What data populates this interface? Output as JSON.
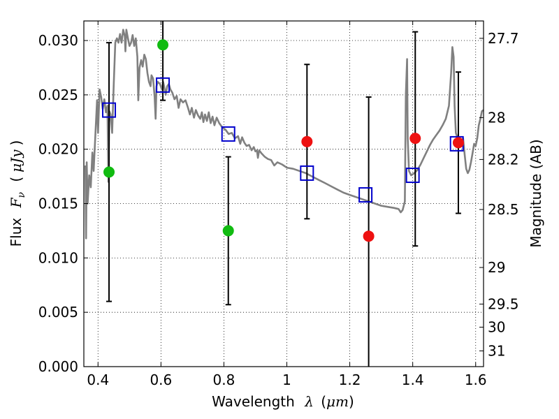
{
  "chart_data": {
    "type": "scatter",
    "xlabel_text": "Wavelength",
    "xlabel_symbol": "λ",
    "xlabel_unit": "μm",
    "ylabel_text": "Flux",
    "ylabel_symbol": "F",
    "ylabel_sub": "ν",
    "ylabel_unit": "μJy",
    "y2label": "Magnitude (AB)",
    "xlim": [
      0.355,
      1.625
    ],
    "ylim": [
      0.0,
      0.0318
    ],
    "grid": true,
    "x_ticks": [
      {
        "v": 0.4,
        "label": "0.4"
      },
      {
        "v": 0.6,
        "label": "0.6"
      },
      {
        "v": 0.8,
        "label": "0.8"
      },
      {
        "v": 1.0,
        "label": "1"
      },
      {
        "v": 1.2,
        "label": "1.2"
      },
      {
        "v": 1.4,
        "label": "1.4"
      },
      {
        "v": 1.6,
        "label": "1.6"
      }
    ],
    "y_ticks": [
      {
        "v": 0.0,
        "label": "0.000"
      },
      {
        "v": 0.005,
        "label": "0.005"
      },
      {
        "v": 0.01,
        "label": "0.010"
      },
      {
        "v": 0.015,
        "label": "0.015"
      },
      {
        "v": 0.02,
        "label": "0.020"
      },
      {
        "v": 0.025,
        "label": "0.025"
      },
      {
        "v": 0.03,
        "label": "0.030"
      }
    ],
    "y2_ticks": [
      {
        "mag": 27.7,
        "label": "27.7"
      },
      {
        "mag": 28.0,
        "label": "28"
      },
      {
        "mag": 28.2,
        "label": "28.2"
      },
      {
        "mag": 28.5,
        "label": "28.5"
      },
      {
        "mag": 29.0,
        "label": "29"
      },
      {
        "mag": 29.5,
        "label": "29.5"
      },
      {
        "mag": 30.0,
        "label": "30"
      },
      {
        "mag": 31.0,
        "label": "31"
      }
    ],
    "colors": {
      "model": "#808080",
      "model_phot": "#0000cc",
      "obs_green": "#11bb11",
      "obs_red": "#ee1111",
      "errorbar": "#000000"
    },
    "model_spectrum": [
      [
        0.36,
        0.0185
      ],
      [
        0.362,
        0.0118
      ],
      [
        0.364,
        0.0188
      ],
      [
        0.367,
        0.015
      ],
      [
        0.372,
        0.0176
      ],
      [
        0.377,
        0.0165
      ],
      [
        0.382,
        0.0197
      ],
      [
        0.386,
        0.018
      ],
      [
        0.392,
        0.0216
      ],
      [
        0.397,
        0.0245
      ],
      [
        0.4,
        0.0215
      ],
      [
        0.405,
        0.0255
      ],
      [
        0.41,
        0.0248
      ],
      [
        0.415,
        0.0237
      ],
      [
        0.42,
        0.0246
      ],
      [
        0.425,
        0.0234
      ],
      [
        0.43,
        0.024
      ],
      [
        0.433,
        0.017
      ],
      [
        0.436,
        0.0235
      ],
      [
        0.44,
        0.0232
      ],
      [
        0.445,
        0.0215
      ],
      [
        0.45,
        0.026
      ],
      [
        0.455,
        0.0298
      ],
      [
        0.46,
        0.0302
      ],
      [
        0.465,
        0.0298
      ],
      [
        0.47,
        0.0306
      ],
      [
        0.475,
        0.0298
      ],
      [
        0.48,
        0.031
      ],
      [
        0.485,
        0.0304
      ],
      [
        0.487,
        0.029
      ],
      [
        0.49,
        0.031
      ],
      [
        0.495,
        0.0302
      ],
      [
        0.5,
        0.0295
      ],
      [
        0.505,
        0.0298
      ],
      [
        0.51,
        0.0305
      ],
      [
        0.515,
        0.0295
      ],
      [
        0.52,
        0.0302
      ],
      [
        0.525,
        0.0285
      ],
      [
        0.528,
        0.0245
      ],
      [
        0.532,
        0.0275
      ],
      [
        0.537,
        0.0282
      ],
      [
        0.542,
        0.0276
      ],
      [
        0.547,
        0.0287
      ],
      [
        0.552,
        0.0283
      ],
      [
        0.557,
        0.027
      ],
      [
        0.562,
        0.0262
      ],
      [
        0.567,
        0.0258
      ],
      [
        0.57,
        0.0268
      ],
      [
        0.575,
        0.0265
      ],
      [
        0.58,
        0.0248
      ],
      [
        0.583,
        0.0228
      ],
      [
        0.586,
        0.0258
      ],
      [
        0.59,
        0.0262
      ],
      [
        0.597,
        0.026
      ],
      [
        0.603,
        0.0255
      ],
      [
        0.607,
        0.0262
      ],
      [
        0.61,
        0.0258
      ],
      [
        0.615,
        0.025
      ],
      [
        0.62,
        0.0258
      ],
      [
        0.625,
        0.026
      ],
      [
        0.63,
        0.0255
      ],
      [
        0.636,
        0.0252
      ],
      [
        0.643,
        0.0246
      ],
      [
        0.65,
        0.0249
      ],
      [
        0.656,
        0.0238
      ],
      [
        0.662,
        0.0246
      ],
      [
        0.67,
        0.0243
      ],
      [
        0.678,
        0.0245
      ],
      [
        0.686,
        0.0238
      ],
      [
        0.692,
        0.0232
      ],
      [
        0.698,
        0.0238
      ],
      [
        0.705,
        0.0229
      ],
      [
        0.711,
        0.0236
      ],
      [
        0.718,
        0.0231
      ],
      [
        0.725,
        0.0228
      ],
      [
        0.73,
        0.0234
      ],
      [
        0.735,
        0.0225
      ],
      [
        0.74,
        0.0232
      ],
      [
        0.746,
        0.0226
      ],
      [
        0.752,
        0.0234
      ],
      [
        0.758,
        0.0224
      ],
      [
        0.764,
        0.023
      ],
      [
        0.77,
        0.0222
      ],
      [
        0.777,
        0.0229
      ],
      [
        0.785,
        0.0224
      ],
      [
        0.795,
        0.022
      ],
      [
        0.805,
        0.0218
      ],
      [
        0.815,
        0.0214
      ],
      [
        0.825,
        0.0215
      ],
      [
        0.835,
        0.021
      ],
      [
        0.845,
        0.0212
      ],
      [
        0.852,
        0.0205
      ],
      [
        0.858,
        0.0211
      ],
      [
        0.865,
        0.0206
      ],
      [
        0.872,
        0.0203
      ],
      [
        0.88,
        0.0204
      ],
      [
        0.888,
        0.0199
      ],
      [
        0.895,
        0.0202
      ],
      [
        0.9,
        0.0198
      ],
      [
        0.905,
        0.0199
      ],
      [
        0.908,
        0.0192
      ],
      [
        0.912,
        0.0199
      ],
      [
        0.92,
        0.0196
      ],
      [
        0.93,
        0.0193
      ],
      [
        0.94,
        0.0191
      ],
      [
        0.95,
        0.019
      ],
      [
        0.96,
        0.0185
      ],
      [
        0.97,
        0.0188
      ],
      [
        0.985,
        0.0186
      ],
      [
        1.0,
        0.0183
      ],
      [
        1.02,
        0.0182
      ],
      [
        1.04,
        0.018
      ],
      [
        1.06,
        0.0178
      ],
      [
        1.08,
        0.0175
      ],
      [
        1.1,
        0.0172
      ],
      [
        1.12,
        0.0169
      ],
      [
        1.14,
        0.0166
      ],
      [
        1.16,
        0.0163
      ],
      [
        1.18,
        0.016
      ],
      [
        1.2,
        0.0158
      ],
      [
        1.22,
        0.0156
      ],
      [
        1.24,
        0.0154
      ],
      [
        1.26,
        0.0152
      ],
      [
        1.28,
        0.015
      ],
      [
        1.3,
        0.0148
      ],
      [
        1.32,
        0.0147
      ],
      [
        1.34,
        0.0146
      ],
      [
        1.355,
        0.0145
      ],
      [
        1.362,
        0.0142
      ],
      [
        1.368,
        0.0144
      ],
      [
        1.375,
        0.0152
      ],
      [
        1.378,
        0.025
      ],
      [
        1.382,
        0.0283
      ],
      [
        1.384,
        0.021
      ],
      [
        1.388,
        0.018
      ],
      [
        1.395,
        0.0176
      ],
      [
        1.405,
        0.0178
      ],
      [
        1.415,
        0.0181
      ],
      [
        1.425,
        0.0186
      ],
      [
        1.435,
        0.0192
      ],
      [
        1.445,
        0.0198
      ],
      [
        1.455,
        0.0204
      ],
      [
        1.465,
        0.0209
      ],
      [
        1.475,
        0.0213
      ],
      [
        1.485,
        0.0217
      ],
      [
        1.495,
        0.0222
      ],
      [
        1.505,
        0.0228
      ],
      [
        1.515,
        0.024
      ],
      [
        1.522,
        0.027
      ],
      [
        1.526,
        0.0294
      ],
      [
        1.53,
        0.0285
      ],
      [
        1.533,
        0.024
      ],
      [
        1.537,
        0.0215
      ],
      [
        1.545,
        0.0208
      ],
      [
        1.555,
        0.0205
      ],
      [
        1.56,
        0.021
      ],
      [
        1.565,
        0.0195
      ],
      [
        1.57,
        0.0182
      ],
      [
        1.575,
        0.0178
      ],
      [
        1.58,
        0.0181
      ],
      [
        1.585,
        0.0188
      ],
      [
        1.59,
        0.0196
      ],
      [
        1.595,
        0.0205
      ],
      [
        1.6,
        0.0203
      ],
      [
        1.605,
        0.021
      ],
      [
        1.61,
        0.0222
      ],
      [
        1.615,
        0.0228
      ],
      [
        1.62,
        0.0235
      ],
      [
        1.625,
        0.0236
      ]
    ],
    "model_photometry": [
      {
        "x": 0.435,
        "y": 0.0236
      },
      {
        "x": 0.606,
        "y": 0.0259
      },
      {
        "x": 0.814,
        "y": 0.0214
      },
      {
        "x": 1.064,
        "y": 0.0178
      },
      {
        "x": 1.25,
        "y": 0.0158
      },
      {
        "x": 1.4,
        "y": 0.0176
      },
      {
        "x": 1.54,
        "y": 0.0205
      }
    ],
    "observations": [
      {
        "x": 0.435,
        "y": 0.0179,
        "ylo": 0.006,
        "yhi": 0.0298,
        "color": "green"
      },
      {
        "x": 0.606,
        "y": 0.0296,
        "ylo": 0.0245,
        "yhi": 0.0318,
        "color": "green"
      },
      {
        "x": 0.814,
        "y": 0.0125,
        "ylo": 0.0057,
        "yhi": 0.0193,
        "color": "green"
      },
      {
        "x": 1.064,
        "y": 0.0207,
        "ylo": 0.0136,
        "yhi": 0.0278,
        "color": "red"
      },
      {
        "x": 1.26,
        "y": 0.012,
        "ylo": 0.0,
        "yhi": 0.0248,
        "color": "red"
      },
      {
        "x": 1.408,
        "y": 0.021,
        "ylo": 0.0111,
        "yhi": 0.0308,
        "color": "red"
      },
      {
        "x": 1.545,
        "y": 0.0206,
        "ylo": 0.0141,
        "yhi": 0.0271,
        "color": "red"
      }
    ]
  }
}
